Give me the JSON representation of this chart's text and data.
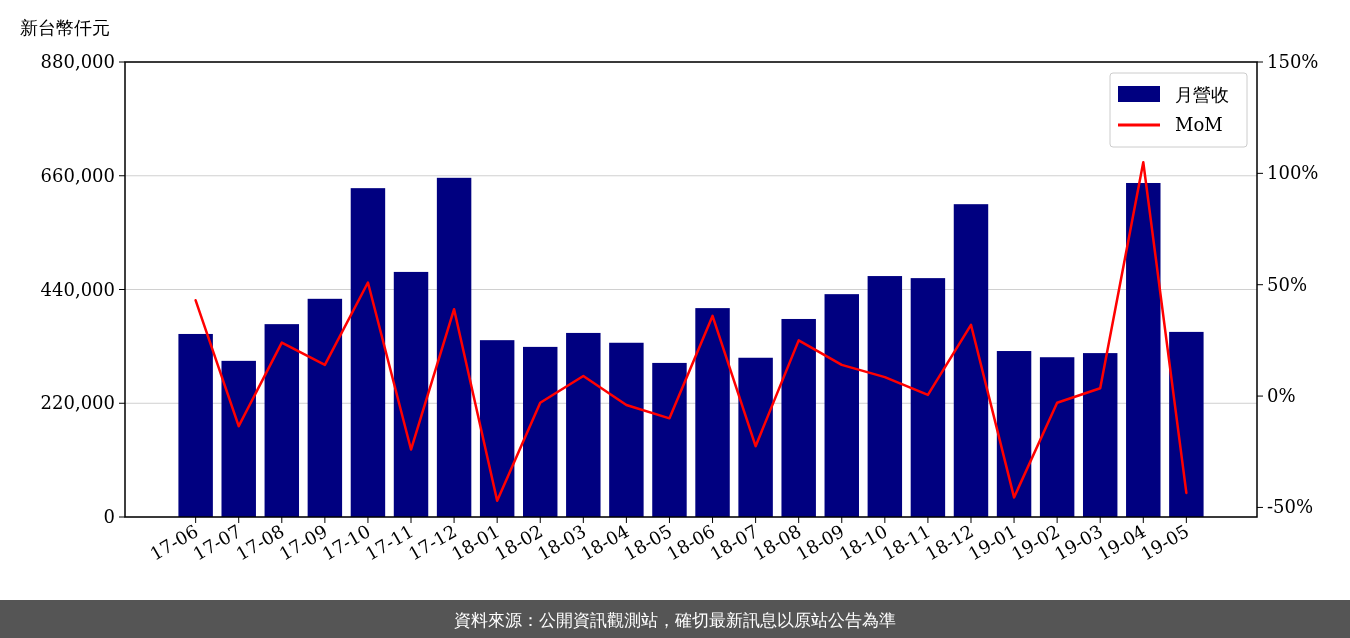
{
  "chart_data": {
    "type": "bar",
    "ylabel": "新台幣仟元",
    "categories": [
      "17-06",
      "17-07",
      "17-08",
      "17-09",
      "17-10",
      "17-11",
      "17-12",
      "18-01",
      "18-02",
      "18-03",
      "18-04",
      "18-05",
      "18-06",
      "18-07",
      "18-08",
      "18-09",
      "18-10",
      "18-11",
      "18-12",
      "19-01",
      "19-02",
      "19-03",
      "19-04",
      "19-05"
    ],
    "series": [
      {
        "name": "月營收",
        "color": "#000080",
        "values": [
          354000,
          302000,
          373000,
          422000,
          636000,
          474000,
          656000,
          342000,
          329000,
          356000,
          337000,
          298000,
          404000,
          308000,
          383000,
          431000,
          466000,
          462000,
          605000,
          321000,
          309000,
          317000,
          646000,
          358000
        ]
      },
      {
        "name": "MoM",
        "type": "line",
        "axis": "y2",
        "color": "#ff0000",
        "values": [
          43,
          -13.5,
          24,
          14,
          51,
          -24,
          39,
          -47,
          -3,
          9,
          -4,
          -10,
          36,
          -22.5,
          25,
          14,
          8.5,
          0.5,
          32,
          -45.5,
          -3,
          3.5,
          105,
          -43.5
        ]
      }
    ],
    "ylim": [
      0,
      880000
    ],
    "yticks": [
      {
        "value": 0,
        "label": "0"
      },
      {
        "value": 220000,
        "label": "220,000"
      },
      {
        "value": 440000,
        "label": "440,000"
      },
      {
        "value": 660000,
        "label": "660,000"
      },
      {
        "value": 880000,
        "label": "880,000"
      }
    ],
    "y2lim": [
      -54.3,
      150
    ],
    "y2ticks": [
      {
        "value": -50,
        "label": "-50%"
      },
      {
        "value": 0,
        "label": "0%"
      },
      {
        "value": 50,
        "label": "50%"
      },
      {
        "value": 100,
        "label": "100%"
      },
      {
        "value": 150,
        "label": "150%"
      }
    ],
    "grid": "y",
    "legend": "top right",
    "annotations": [
      "資料來源：公開資訊觀測站，確切最新訊息以原站公告為準"
    ]
  }
}
